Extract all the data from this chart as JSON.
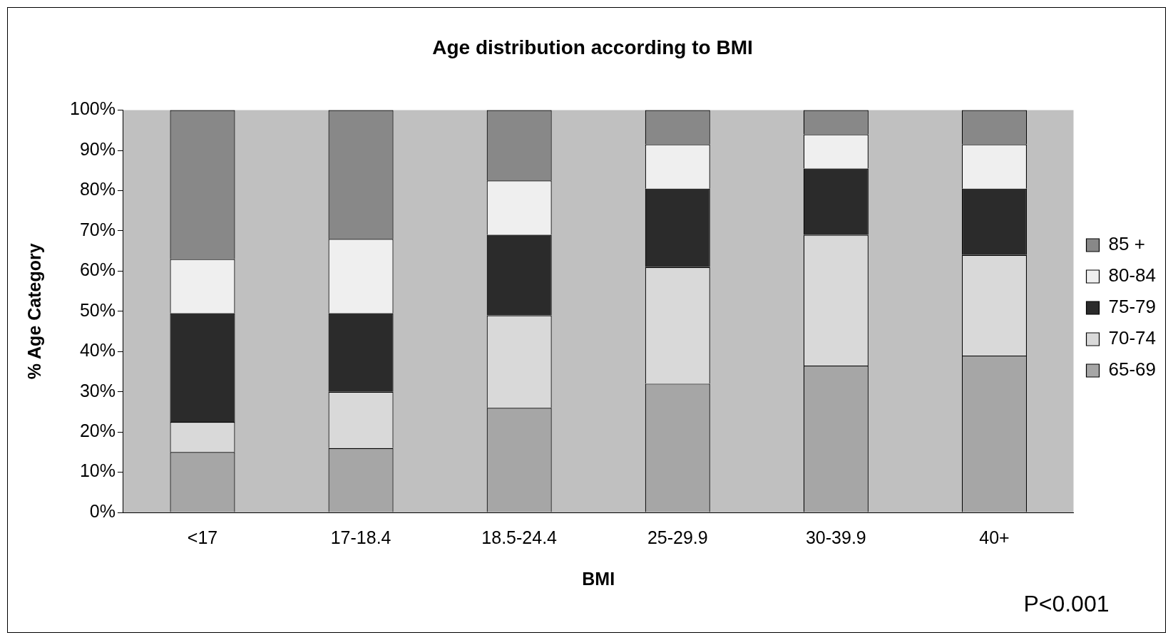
{
  "chart_data": {
    "type": "bar",
    "title": "Age distribution according to BMI",
    "xlabel": "BMI",
    "ylabel": "% Age Category",
    "categories": [
      "<17",
      "17-18.4",
      "18.5-24.4",
      "25-29.9",
      "30-39.9",
      "40+"
    ],
    "stacked": true,
    "legend": "right",
    "grid": false,
    "ylim": [
      0,
      100
    ],
    "yticks": [
      {
        "value": 0,
        "label": "0%"
      },
      {
        "value": 10,
        "label": "10%"
      },
      {
        "value": 20,
        "label": "20%"
      },
      {
        "value": 30,
        "label": "30%"
      },
      {
        "value": 40,
        "label": "40%"
      },
      {
        "value": 50,
        "label": "50%"
      },
      {
        "value": 60,
        "label": "60%"
      },
      {
        "value": 70,
        "label": "70%"
      },
      {
        "value": 80,
        "label": "80%"
      },
      {
        "value": 90,
        "label": "90%"
      },
      {
        "value": 100,
        "label": "100%"
      }
    ],
    "series": [
      {
        "name": "65-69",
        "color": "#a6a6a6",
        "values": [
          15,
          16,
          26,
          32,
          36.5,
          39
        ]
      },
      {
        "name": "70-74",
        "color": "#d9d9d9",
        "values": [
          7.5,
          14,
          23,
          29,
          32.5,
          25
        ]
      },
      {
        "name": "75-79",
        "color": "#2b2b2b",
        "values": [
          27,
          19.5,
          20,
          19.5,
          16.5,
          16.5
        ]
      },
      {
        "name": "80-84",
        "color": "#efefef",
        "values": [
          13.5,
          18.5,
          13.5,
          11,
          8.5,
          11
        ]
      },
      {
        "name": "85 +",
        "color": "#888888",
        "values": [
          37,
          32,
          17.5,
          8.5,
          6,
          8.5
        ]
      }
    ],
    "annotations": [
      "P<0.001"
    ]
  }
}
